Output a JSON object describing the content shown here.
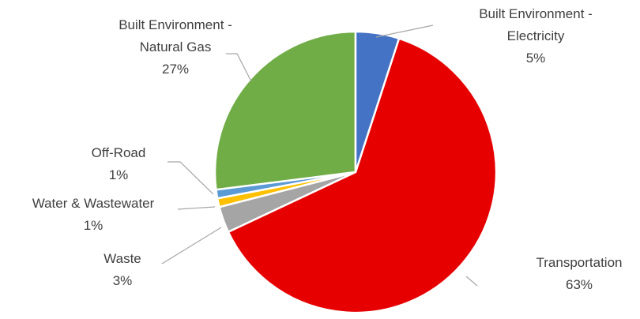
{
  "chart_data": {
    "type": "pie",
    "categories": [
      "Built Environment - Electricity",
      "Transportation",
      "Waste",
      "Water & Wastewater",
      "Off-Road",
      "Built Environment - Natural Gas"
    ],
    "values": [
      5,
      63,
      3,
      1,
      1,
      27
    ],
    "value_labels": [
      "5%",
      "63%",
      "3%",
      "1%",
      "1%",
      "27%"
    ],
    "colors": [
      "#4472c4",
      "#e60000",
      "#a5a5a5",
      "#ffc000",
      "#5b9bd5",
      "#70ad47"
    ]
  }
}
